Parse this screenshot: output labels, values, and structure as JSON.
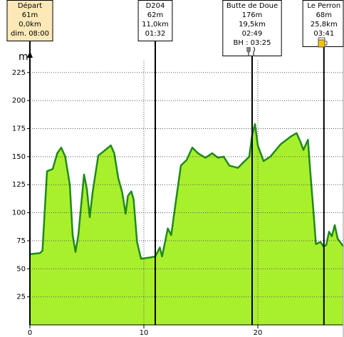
{
  "chart_data": {
    "type": "area",
    "y_axis_label": "m",
    "xlim": [
      0,
      27.5
    ],
    "ylim": [
      0,
      242
    ],
    "xticks": [
      0,
      10,
      20
    ],
    "yticks": [
      25,
      50,
      75,
      100,
      125,
      150,
      175,
      200,
      225
    ],
    "grid": true,
    "color": "#a9f02c",
    "line_color": "#1f8a1a",
    "x": [
      0,
      0.875,
      1.1,
      1.5,
      2,
      2.4,
      2.75,
      3.1,
      3.5,
      3.75,
      4,
      4.25,
      4.75,
      5,
      5.25,
      5.5,
      6,
      6.5,
      7.1,
      7.4,
      7.75,
      8.1,
      8.4,
      8.6,
      8.9,
      9.1,
      9.4,
      9.75,
      10.5,
      11,
      11.4,
      11.6,
      12.1,
      12.4,
      12.75,
      13.25,
      13.75,
      14.25,
      14.75,
      15.4,
      16,
      16.5,
      17,
      17.5,
      18.25,
      18.75,
      19.25,
      19.5,
      19.75,
      20,
      20.5,
      21.1,
      22,
      22.9,
      23.4,
      23.75,
      24,
      24.4,
      24.6,
      24.9,
      25.1,
      25.5,
      25.75,
      26,
      26.25,
      26.5,
      26.75,
      27,
      27.5
    ],
    "values": [
      63,
      64,
      66,
      137,
      139,
      153,
      158,
      150,
      125,
      80,
      65,
      80,
      134,
      121,
      96,
      118,
      151,
      155,
      160,
      153,
      131,
      118,
      99,
      115,
      119,
      112,
      74,
      59,
      60,
      61,
      69,
      61,
      86,
      80,
      106,
      142,
      147,
      158,
      153,
      149,
      153,
      149,
      150,
      142,
      140,
      145,
      150,
      169,
      179,
      160,
      146,
      150,
      161,
      168,
      171,
      163,
      156,
      165,
      137,
      99,
      72,
      74,
      70,
      71,
      83,
      79,
      89,
      77,
      70
    ],
    "waypoints": [
      {
        "x": 0,
        "fill": "#fde9b8",
        "lines": [
          "Départ",
          "61m",
          "0,0km",
          "dim. 08:00"
        ]
      },
      {
        "x": 11,
        "fill": "#ffffff",
        "lines": [
          "D204",
          "62m",
          "11,0km",
          "01:32"
        ]
      },
      {
        "x": 19.5,
        "fill": "#ffffff",
        "lines": [
          "Butte de Doue",
          "176m",
          "19,5km",
          "02:49",
          "BH : 03:25"
        ]
      },
      {
        "x": 25.8,
        "fill": "#ffffff",
        "lines": [
          "Le Perron",
          "68m",
          "25,8km",
          "03:41"
        ]
      }
    ]
  }
}
